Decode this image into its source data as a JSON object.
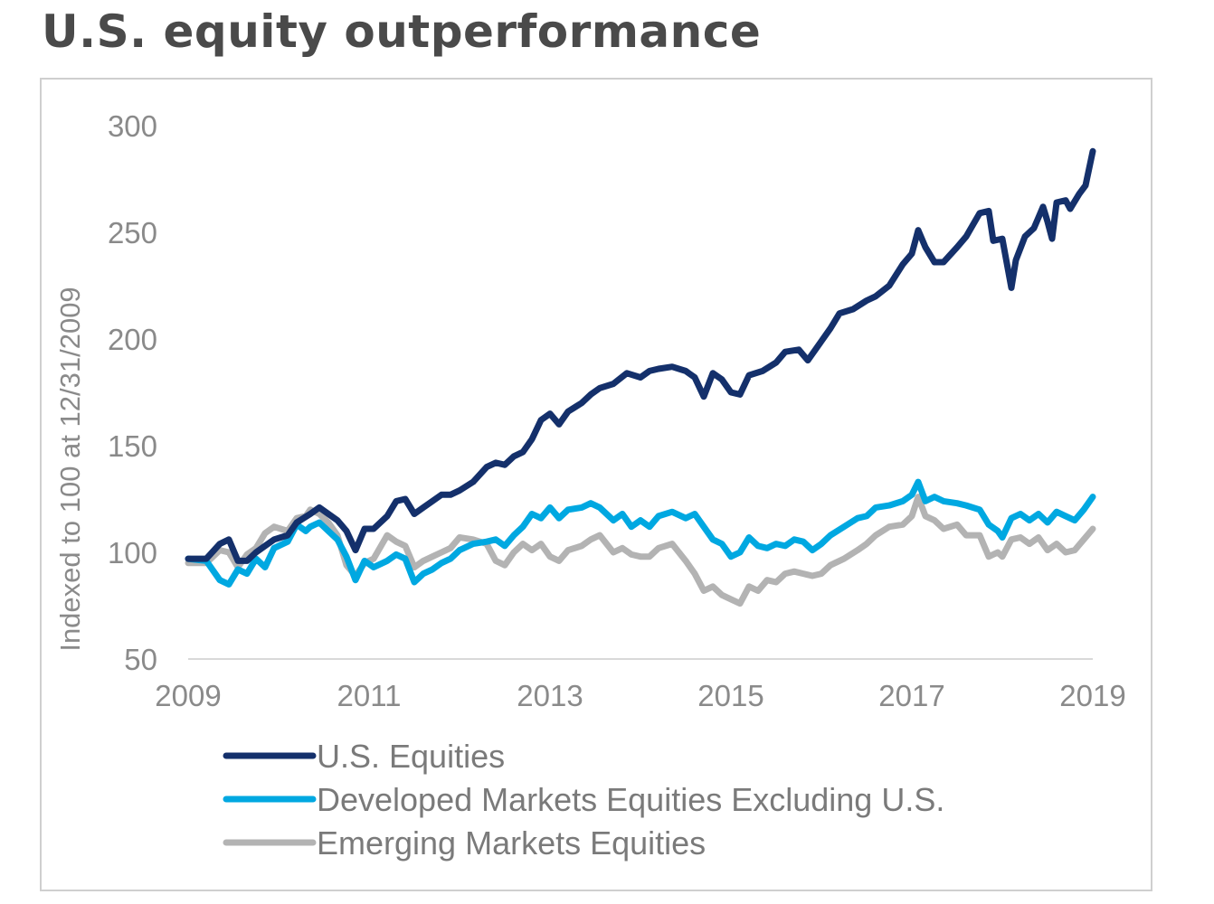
{
  "title": "U.S. equity outperformance",
  "chart_data": {
    "type": "line",
    "title": "U.S. equity outperformance",
    "xlabel": "",
    "ylabel": "Indexed to 100 at 12/31/2009",
    "ylim": [
      50,
      300
    ],
    "xlim": [
      2009,
      2019
    ],
    "yticks": [
      50,
      100,
      150,
      200,
      250,
      300
    ],
    "xticks": [
      2009,
      2011,
      2013,
      2015,
      2017,
      2019
    ],
    "grid": false,
    "legend_position": "bottom-left",
    "series": [
      {
        "name": "U.S. Equities",
        "color": "#14306b",
        "points": [
          [
            2009.0,
            97
          ],
          [
            2009.2,
            97
          ],
          [
            2009.35,
            104
          ],
          [
            2009.45,
            106
          ],
          [
            2009.55,
            96
          ],
          [
            2009.65,
            96
          ],
          [
            2009.75,
            100
          ],
          [
            2009.85,
            103
          ],
          [
            2009.95,
            106
          ],
          [
            2010.1,
            108
          ],
          [
            2010.2,
            114
          ],
          [
            2010.35,
            118
          ],
          [
            2010.45,
            121
          ],
          [
            2010.55,
            118
          ],
          [
            2010.65,
            115
          ],
          [
            2010.75,
            110
          ],
          [
            2010.85,
            101
          ],
          [
            2010.95,
            111
          ],
          [
            2011.05,
            111
          ],
          [
            2011.2,
            117
          ],
          [
            2011.3,
            124
          ],
          [
            2011.4,
            125
          ],
          [
            2011.5,
            118
          ],
          [
            2011.6,
            121
          ],
          [
            2011.7,
            124
          ],
          [
            2011.8,
            127
          ],
          [
            2011.9,
            127
          ],
          [
            2012.0,
            129
          ],
          [
            2012.15,
            133
          ],
          [
            2012.3,
            140
          ],
          [
            2012.4,
            142
          ],
          [
            2012.5,
            141
          ],
          [
            2012.6,
            145
          ],
          [
            2012.7,
            147
          ],
          [
            2012.8,
            153
          ],
          [
            2012.9,
            162
          ],
          [
            2013.0,
            165
          ],
          [
            2013.1,
            160
          ],
          [
            2013.2,
            166
          ],
          [
            2013.35,
            170
          ],
          [
            2013.45,
            174
          ],
          [
            2013.55,
            177
          ],
          [
            2013.7,
            179
          ],
          [
            2013.85,
            184
          ],
          [
            2014.0,
            182
          ],
          [
            2014.1,
            185
          ],
          [
            2014.2,
            186
          ],
          [
            2014.35,
            187
          ],
          [
            2014.5,
            185
          ],
          [
            2014.6,
            182
          ],
          [
            2014.7,
            173
          ],
          [
            2014.8,
            184
          ],
          [
            2014.9,
            181
          ],
          [
            2015.0,
            175
          ],
          [
            2015.1,
            174
          ],
          [
            2015.2,
            183
          ],
          [
            2015.35,
            185
          ],
          [
            2015.5,
            189
          ],
          [
            2015.6,
            194
          ],
          [
            2015.75,
            195
          ],
          [
            2015.85,
            190
          ],
          [
            2016.0,
            199
          ],
          [
            2016.1,
            205
          ],
          [
            2016.2,
            212
          ],
          [
            2016.35,
            214
          ],
          [
            2016.5,
            218
          ],
          [
            2016.6,
            220
          ],
          [
            2016.75,
            225
          ],
          [
            2016.9,
            235
          ],
          [
            2017.0,
            240
          ],
          [
            2017.07,
            251
          ],
          [
            2017.15,
            243
          ],
          [
            2017.25,
            236
          ],
          [
            2017.35,
            236
          ],
          [
            2017.5,
            243
          ],
          [
            2017.6,
            248
          ],
          [
            2017.75,
            259
          ],
          [
            2017.85,
            260
          ],
          [
            2017.9,
            246
          ],
          [
            2018.0,
            247
          ],
          [
            2018.1,
            224
          ],
          [
            2018.15,
            237
          ],
          [
            2018.25,
            248
          ],
          [
            2018.35,
            252
          ],
          [
            2018.45,
            262
          ],
          [
            2018.5,
            255
          ],
          [
            2018.55,
            247
          ],
          [
            2018.6,
            264
          ],
          [
            2018.7,
            265
          ],
          [
            2018.75,
            261
          ],
          [
            2018.85,
            268
          ],
          [
            2018.92,
            272
          ],
          [
            2019.0,
            288
          ]
        ]
      },
      {
        "name": "Developed Markets Equities Excluding U.S.",
        "color": "#00a8e1",
        "points": [
          [
            2009.0,
            97
          ],
          [
            2009.2,
            96
          ],
          [
            2009.35,
            87
          ],
          [
            2009.45,
            85
          ],
          [
            2009.55,
            92
          ],
          [
            2009.65,
            90
          ],
          [
            2009.75,
            97
          ],
          [
            2009.85,
            93
          ],
          [
            2009.95,
            102
          ],
          [
            2010.1,
            105
          ],
          [
            2010.2,
            113
          ],
          [
            2010.3,
            110
          ],
          [
            2010.35,
            112
          ],
          [
            2010.45,
            114
          ],
          [
            2010.55,
            110
          ],
          [
            2010.65,
            106
          ],
          [
            2010.75,
            98
          ],
          [
            2010.85,
            87
          ],
          [
            2010.95,
            96
          ],
          [
            2011.05,
            93
          ],
          [
            2011.2,
            96
          ],
          [
            2011.3,
            99
          ],
          [
            2011.4,
            97
          ],
          [
            2011.5,
            86
          ],
          [
            2011.6,
            90
          ],
          [
            2011.7,
            92
          ],
          [
            2011.8,
            95
          ],
          [
            2011.9,
            97
          ],
          [
            2012.0,
            101
          ],
          [
            2012.15,
            104
          ],
          [
            2012.3,
            105
          ],
          [
            2012.4,
            106
          ],
          [
            2012.5,
            103
          ],
          [
            2012.6,
            108
          ],
          [
            2012.7,
            112
          ],
          [
            2012.8,
            118
          ],
          [
            2012.9,
            116
          ],
          [
            2013.0,
            121
          ],
          [
            2013.1,
            116
          ],
          [
            2013.2,
            120
          ],
          [
            2013.35,
            121
          ],
          [
            2013.45,
            123
          ],
          [
            2013.55,
            121
          ],
          [
            2013.7,
            115
          ],
          [
            2013.8,
            118
          ],
          [
            2013.9,
            112
          ],
          [
            2014.0,
            115
          ],
          [
            2014.1,
            112
          ],
          [
            2014.2,
            117
          ],
          [
            2014.35,
            119
          ],
          [
            2014.5,
            116
          ],
          [
            2014.6,
            118
          ],
          [
            2014.7,
            112
          ],
          [
            2014.8,
            106
          ],
          [
            2014.9,
            104
          ],
          [
            2015.0,
            98
          ],
          [
            2015.1,
            100
          ],
          [
            2015.2,
            107
          ],
          [
            2015.3,
            103
          ],
          [
            2015.4,
            102
          ],
          [
            2015.5,
            104
          ],
          [
            2015.6,
            103
          ],
          [
            2015.7,
            106
          ],
          [
            2015.8,
            105
          ],
          [
            2015.9,
            101
          ],
          [
            2016.0,
            104
          ],
          [
            2016.1,
            108
          ],
          [
            2016.25,
            112
          ],
          [
            2016.4,
            116
          ],
          [
            2016.5,
            117
          ],
          [
            2016.6,
            121
          ],
          [
            2016.75,
            122
          ],
          [
            2016.9,
            124
          ],
          [
            2017.0,
            127
          ],
          [
            2017.07,
            133
          ],
          [
            2017.15,
            124
          ],
          [
            2017.25,
            126
          ],
          [
            2017.35,
            124
          ],
          [
            2017.5,
            123
          ],
          [
            2017.6,
            122
          ],
          [
            2017.75,
            120
          ],
          [
            2017.85,
            113
          ],
          [
            2017.95,
            110
          ],
          [
            2018.0,
            107
          ],
          [
            2018.1,
            116
          ],
          [
            2018.2,
            118
          ],
          [
            2018.3,
            115
          ],
          [
            2018.4,
            118
          ],
          [
            2018.5,
            114
          ],
          [
            2018.6,
            119
          ],
          [
            2018.7,
            117
          ],
          [
            2018.8,
            115
          ],
          [
            2018.9,
            120
          ],
          [
            2019.0,
            126
          ]
        ]
      },
      {
        "name": "Emerging Markets Equities",
        "color": "#b3b3b3",
        "points": [
          [
            2009.0,
            95
          ],
          [
            2009.2,
            95
          ],
          [
            2009.35,
            101
          ],
          [
            2009.45,
            100
          ],
          [
            2009.55,
            93
          ],
          [
            2009.65,
            99
          ],
          [
            2009.75,
            102
          ],
          [
            2009.85,
            109
          ],
          [
            2009.95,
            112
          ],
          [
            2010.1,
            110
          ],
          [
            2010.2,
            116
          ],
          [
            2010.3,
            117
          ],
          [
            2010.35,
            120
          ],
          [
            2010.45,
            118
          ],
          [
            2010.55,
            114
          ],
          [
            2010.65,
            108
          ],
          [
            2010.75,
            94
          ],
          [
            2010.85,
            89
          ],
          [
            2010.95,
            95
          ],
          [
            2011.05,
            97
          ],
          [
            2011.2,
            108
          ],
          [
            2011.3,
            105
          ],
          [
            2011.4,
            103
          ],
          [
            2011.5,
            93
          ],
          [
            2011.6,
            96
          ],
          [
            2011.7,
            98
          ],
          [
            2011.8,
            100
          ],
          [
            2011.9,
            102
          ],
          [
            2012.0,
            107
          ],
          [
            2012.15,
            106
          ],
          [
            2012.3,
            104
          ],
          [
            2012.4,
            96
          ],
          [
            2012.5,
            94
          ],
          [
            2012.6,
            100
          ],
          [
            2012.7,
            104
          ],
          [
            2012.8,
            101
          ],
          [
            2012.9,
            104
          ],
          [
            2013.0,
            98
          ],
          [
            2013.1,
            96
          ],
          [
            2013.2,
            101
          ],
          [
            2013.35,
            103
          ],
          [
            2013.45,
            106
          ],
          [
            2013.55,
            108
          ],
          [
            2013.7,
            100
          ],
          [
            2013.8,
            102
          ],
          [
            2013.9,
            99
          ],
          [
            2014.0,
            98
          ],
          [
            2014.1,
            98
          ],
          [
            2014.2,
            102
          ],
          [
            2014.35,
            104
          ],
          [
            2014.5,
            96
          ],
          [
            2014.6,
            90
          ],
          [
            2014.7,
            82
          ],
          [
            2014.8,
            84
          ],
          [
            2014.9,
            80
          ],
          [
            2015.0,
            78
          ],
          [
            2015.1,
            76
          ],
          [
            2015.2,
            84
          ],
          [
            2015.3,
            82
          ],
          [
            2015.4,
            87
          ],
          [
            2015.5,
            86
          ],
          [
            2015.6,
            90
          ],
          [
            2015.7,
            91
          ],
          [
            2015.8,
            90
          ],
          [
            2015.9,
            89
          ],
          [
            2016.0,
            90
          ],
          [
            2016.1,
            94
          ],
          [
            2016.25,
            97
          ],
          [
            2016.4,
            101
          ],
          [
            2016.5,
            104
          ],
          [
            2016.6,
            108
          ],
          [
            2016.75,
            112
          ],
          [
            2016.9,
            113
          ],
          [
            2017.0,
            117
          ],
          [
            2017.07,
            126
          ],
          [
            2017.15,
            117
          ],
          [
            2017.25,
            115
          ],
          [
            2017.35,
            111
          ],
          [
            2017.5,
            113
          ],
          [
            2017.6,
            108
          ],
          [
            2017.75,
            108
          ],
          [
            2017.85,
            98
          ],
          [
            2017.95,
            100
          ],
          [
            2018.0,
            98
          ],
          [
            2018.1,
            106
          ],
          [
            2018.2,
            107
          ],
          [
            2018.3,
            104
          ],
          [
            2018.4,
            107
          ],
          [
            2018.5,
            101
          ],
          [
            2018.6,
            104
          ],
          [
            2018.7,
            100
          ],
          [
            2018.8,
            101
          ],
          [
            2018.9,
            106
          ],
          [
            2019.0,
            111
          ]
        ]
      }
    ]
  }
}
